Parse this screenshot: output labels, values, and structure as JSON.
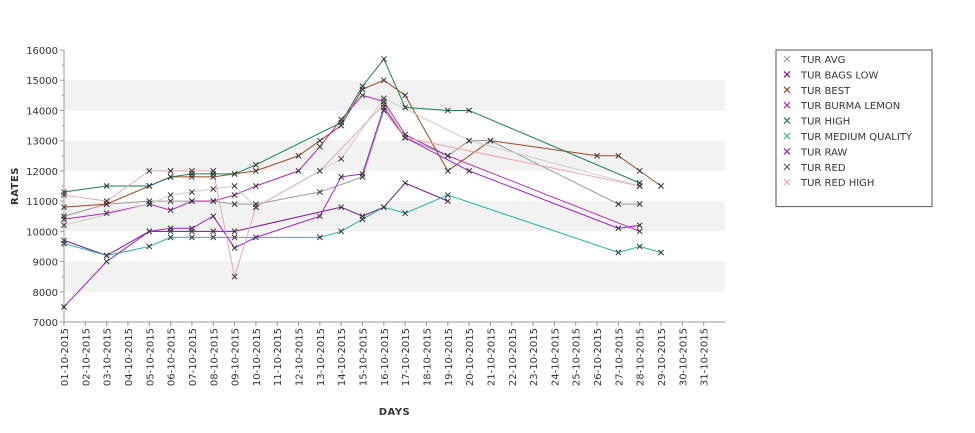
{
  "chart_data": {
    "type": "line",
    "xlabel": "DAYS",
    "ylabel": "RATES",
    "ylim": [
      7000,
      16000
    ],
    "yticks": [
      7000,
      8000,
      9000,
      10000,
      11000,
      12000,
      13000,
      14000,
      15000,
      16000
    ],
    "xticks": [
      "01-10-2015",
      "02-10-2015",
      "03-10-2015",
      "04-10-2015",
      "05-10-2015",
      "06-10-2015",
      "07-10-2015",
      "08-10-2015",
      "09-10-2015",
      "10-10-2015",
      "11-10-2015",
      "12-10-2015",
      "13-10-2015",
      "14-10-2015",
      "15-10-2015",
      "16-10-2015",
      "17-10-2015",
      "18-10-2015",
      "19-10-2015",
      "20-10-2015",
      "21-10-2015",
      "22-10-2015",
      "23-10-2015",
      "24-10-2015",
      "25-10-2015",
      "26-10-2015",
      "27-10-2015",
      "28-10-2015",
      "29-10-2015",
      "30-10-2015",
      "31-10-2015"
    ],
    "marker": "x",
    "legend_position": "top-right",
    "grid": "alternating horizontal bands",
    "series": [
      {
        "name": "TUR AVG",
        "color": "#9a9a9a",
        "points": [
          [
            "01-10-2015",
            10500
          ],
          [
            "03-10-2015",
            10900
          ],
          [
            "05-10-2015",
            11000
          ],
          [
            "06-10-2015",
            11000
          ],
          [
            "07-10-2015",
            11000
          ],
          [
            "08-10-2015",
            11000
          ],
          [
            "09-10-2015",
            10900
          ],
          [
            "10-10-2015",
            10900
          ],
          [
            "13-10-2015",
            11300
          ],
          [
            "15-10-2015",
            11800
          ],
          [
            "16-10-2015",
            14000
          ],
          [
            "17-10-2015",
            13100
          ],
          [
            "19-10-2015",
            12500
          ],
          [
            "20-10-2015",
            13000
          ],
          [
            "21-10-2015",
            13000
          ],
          [
            "27-10-2015",
            10900
          ],
          [
            "28-10-2015",
            10900
          ]
        ]
      },
      {
        "name": "TUR BAGS LOW",
        "color": "#7a1a8a",
        "points": [
          [
            "01-10-2015",
            9700
          ],
          [
            "03-10-2015",
            9200
          ],
          [
            "05-10-2015",
            10000
          ],
          [
            "06-10-2015",
            10000
          ],
          [
            "07-10-2015",
            10000
          ],
          [
            "08-10-2015",
            10000
          ],
          [
            "09-10-2015",
            10000
          ],
          [
            "14-10-2015",
            10800
          ],
          [
            "15-10-2015",
            10500
          ],
          [
            "16-10-2015",
            10800
          ],
          [
            "17-10-2015",
            11600
          ],
          [
            "19-10-2015",
            11000
          ]
        ]
      },
      {
        "name": "TUR BEST",
        "color": "#9b4a1e",
        "points": [
          [
            "01-10-2015",
            10800
          ],
          [
            "03-10-2015",
            10900
          ],
          [
            "05-10-2015",
            11500
          ],
          [
            "06-10-2015",
            11800
          ],
          [
            "07-10-2015",
            11800
          ],
          [
            "08-10-2015",
            11800
          ],
          [
            "09-10-2015",
            11900
          ],
          [
            "10-10-2015",
            12000
          ],
          [
            "12-10-2015",
            12500
          ],
          [
            "13-10-2015",
            13000
          ],
          [
            "14-10-2015",
            13500
          ],
          [
            "15-10-2015",
            14700
          ],
          [
            "16-10-2015",
            15000
          ],
          [
            "17-10-2015",
            14500
          ],
          [
            "19-10-2015",
            12000
          ],
          [
            "21-10-2015",
            13000
          ],
          [
            "26-10-2015",
            12500
          ],
          [
            "27-10-2015",
            12500
          ],
          [
            "28-10-2015",
            12000
          ],
          [
            "29-10-2015",
            11500
          ]
        ]
      },
      {
        "name": "TUR BURMA LEMON",
        "color": "#b02ab0",
        "points": [
          [
            "01-10-2015",
            10400
          ],
          [
            "03-10-2015",
            10600
          ],
          [
            "05-10-2015",
            10900
          ],
          [
            "06-10-2015",
            10700
          ],
          [
            "07-10-2015",
            11000
          ],
          [
            "08-10-2015",
            11000
          ],
          [
            "09-10-2015",
            11200
          ],
          [
            "10-10-2015",
            11500
          ],
          [
            "12-10-2015",
            12000
          ],
          [
            "13-10-2015",
            12800
          ],
          [
            "14-10-2015",
            13700
          ],
          [
            "15-10-2015",
            14500
          ],
          [
            "16-10-2015",
            14300
          ],
          [
            "17-10-2015",
            13200
          ],
          [
            "19-10-2015",
            12500
          ],
          [
            "28-10-2015",
            10000
          ]
        ]
      },
      {
        "name": "TUR HIGH",
        "color": "#1e7a5a",
        "points": [
          [
            "01-10-2015",
            11300
          ],
          [
            "03-10-2015",
            11500
          ],
          [
            "05-10-2015",
            11500
          ],
          [
            "06-10-2015",
            11800
          ],
          [
            "07-10-2015",
            11900
          ],
          [
            "08-10-2015",
            11900
          ],
          [
            "09-10-2015",
            11900
          ],
          [
            "10-10-2015",
            12200
          ],
          [
            "14-10-2015",
            13600
          ],
          [
            "15-10-2015",
            14800
          ],
          [
            "16-10-2015",
            15700
          ],
          [
            "17-10-2015",
            14100
          ],
          [
            "19-10-2015",
            14000
          ],
          [
            "20-10-2015",
            14000
          ],
          [
            "28-10-2015",
            11600
          ]
        ]
      },
      {
        "name": "TUR MEDIUM QUALITY",
        "color": "#2ab0a8",
        "points": [
          [
            "01-10-2015",
            9600
          ],
          [
            "03-10-2015",
            9200
          ],
          [
            "05-10-2015",
            9500
          ],
          [
            "06-10-2015",
            9800
          ],
          [
            "07-10-2015",
            9800
          ],
          [
            "08-10-2015",
            9800
          ],
          [
            "09-10-2015",
            9800
          ],
          [
            "13-10-2015",
            9800
          ],
          [
            "14-10-2015",
            10000
          ],
          [
            "15-10-2015",
            10400
          ],
          [
            "16-10-2015",
            10800
          ],
          [
            "17-10-2015",
            10600
          ],
          [
            "19-10-2015",
            11200
          ],
          [
            "27-10-2015",
            9300
          ],
          [
            "28-10-2015",
            9500
          ],
          [
            "29-10-2015",
            9300
          ]
        ]
      },
      {
        "name": "TUR RAW",
        "color": "#a020c8",
        "points": [
          [
            "01-10-2015",
            7500
          ],
          [
            "03-10-2015",
            9000
          ],
          [
            "05-10-2015",
            10000
          ],
          [
            "06-10-2015",
            10100
          ],
          [
            "07-10-2015",
            10100
          ],
          [
            "08-10-2015",
            10500
          ],
          [
            "09-10-2015",
            9450
          ],
          [
            "10-10-2015",
            9800
          ],
          [
            "13-10-2015",
            10500
          ],
          [
            "14-10-2015",
            11800
          ],
          [
            "15-10-2015",
            11900
          ],
          [
            "16-10-2015",
            14100
          ],
          [
            "17-10-2015",
            13100
          ],
          [
            "20-10-2015",
            12000
          ],
          [
            "27-10-2015",
            10100
          ],
          [
            "28-10-2015",
            10200
          ]
        ]
      },
      {
        "name": "TUR RED",
        "color": "#cccccc",
        "points": [
          [
            "01-10-2015",
            10200
          ],
          [
            "05-10-2015",
            10900
          ],
          [
            "06-10-2015",
            11200
          ],
          [
            "07-10-2015",
            11300
          ],
          [
            "08-10-2015",
            11400
          ],
          [
            "09-10-2015",
            11500
          ],
          [
            "10-10-2015",
            10800
          ],
          [
            "14-10-2015",
            12400
          ],
          [
            "16-10-2015",
            14400
          ],
          [
            "20-10-2015",
            13000
          ],
          [
            "28-10-2015",
            11500
          ]
        ]
      },
      {
        "name": "TUR RED HIGH",
        "color": "#e8a8a8",
        "points": [
          [
            "01-10-2015",
            11200
          ],
          [
            "03-10-2015",
            11000
          ],
          [
            "05-10-2015",
            12000
          ],
          [
            "06-10-2015",
            12000
          ],
          [
            "07-10-2015",
            12000
          ],
          [
            "08-10-2015",
            12000
          ],
          [
            "09-10-2015",
            8500
          ],
          [
            "10-10-2015",
            10800
          ],
          [
            "13-10-2015",
            12000
          ],
          [
            "16-10-2015",
            14200
          ],
          [
            "17-10-2015",
            13100
          ],
          [
            "28-10-2015",
            11500
          ]
        ]
      }
    ]
  }
}
